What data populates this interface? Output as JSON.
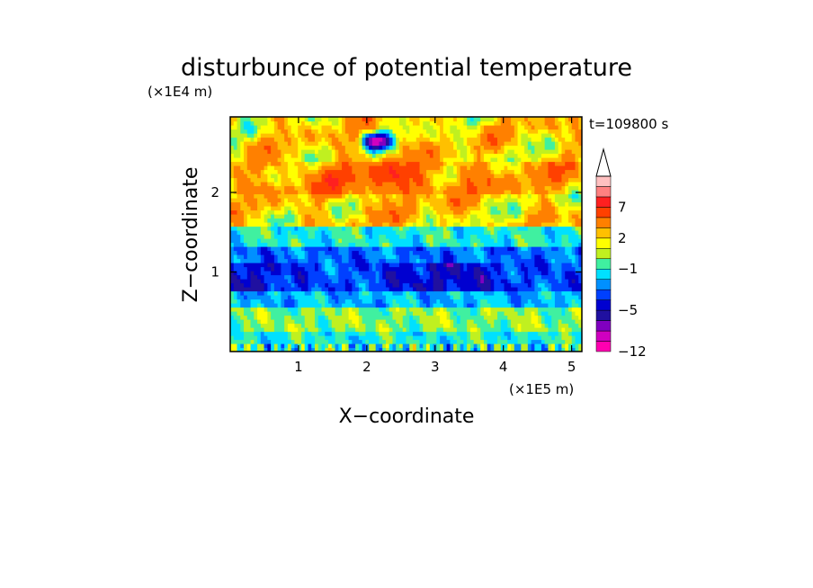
{
  "chart_data": {
    "type": "heatmap",
    "title": "disturbunce of potential temperature",
    "xlabel": "X−coordinate",
    "ylabel": "Z−coordinate",
    "x_unit": "(×1E5 m)",
    "y_unit": "(×1E4 m)",
    "time_label": "t=109800 s",
    "xlim": [
      0,
      5.15
    ],
    "ylim": [
      0,
      2.95
    ],
    "x_ticks": [
      {
        "value": 1,
        "label": "1"
      },
      {
        "value": 2,
        "label": "2"
      },
      {
        "value": 3,
        "label": "3"
      },
      {
        "value": 4,
        "label": "4"
      },
      {
        "value": 5,
        "label": "5"
      }
    ],
    "y_ticks": [
      {
        "value": 1,
        "label": "1"
      },
      {
        "value": 2,
        "label": "2"
      }
    ],
    "colorbar": {
      "levels": [
        -12,
        -10,
        -8,
        -6,
        -5,
        -4,
        -3,
        -2,
        -1,
        0,
        1,
        2,
        3,
        5,
        7,
        8,
        9,
        11
      ],
      "tick_labels": [
        {
          "level": -12,
          "label": "−12"
        },
        {
          "level": -5,
          "label": "−5"
        },
        {
          "level": -1,
          "label": "−1"
        },
        {
          "level": 2,
          "label": "2"
        },
        {
          "level": 7,
          "label": "7"
        }
      ],
      "colors": [
        "#ff00b0",
        "#d000c0",
        "#8000c0",
        "#2010a0",
        "#0000d0",
        "#0040ff",
        "#0090ff",
        "#00e0ff",
        "#40f0a0",
        "#c0f020",
        "#ffff00",
        "#ffc000",
        "#ff8000",
        "#ff4000",
        "#ff2020",
        "#ff8080",
        "#ffc0c0"
      ],
      "extend": "max"
    },
    "field_description_rows": [
      {
        "z_range": [
          0,
          0.25
        ],
        "dominant_level": -1
      },
      {
        "z_range": [
          0.25,
          0.55
        ],
        "dominant_level": 0
      },
      {
        "z_range": [
          0.55,
          0.75
        ],
        "dominant_level": -2
      },
      {
        "z_range": [
          0.75,
          1.1
        ],
        "dominant_level": -4
      },
      {
        "z_range": [
          1.1,
          1.3
        ],
        "dominant_level": -3
      },
      {
        "z_range": [
          1.3,
          1.6
        ],
        "dominant_level": -1
      },
      {
        "z_range": [
          1.6,
          2.0
        ],
        "dominant_level": 2
      },
      {
        "z_range": [
          2.0,
          2.4
        ],
        "dominant_level": 3
      },
      {
        "z_range": [
          2.4,
          2.95
        ],
        "dominant_level": 2
      }
    ]
  }
}
